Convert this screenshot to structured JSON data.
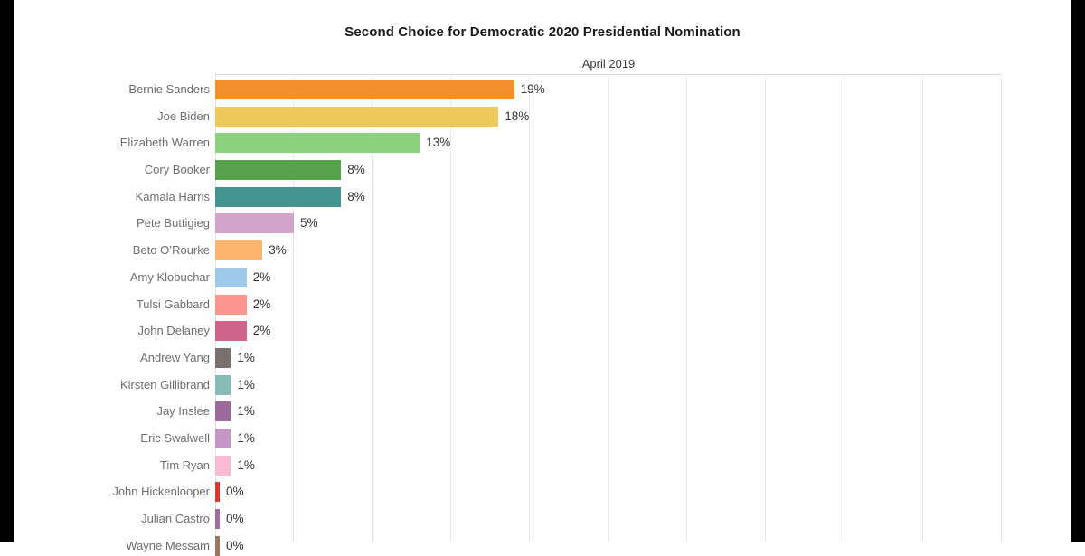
{
  "page": {
    "background": "#ffffff",
    "letterbox_color": "#000000"
  },
  "chart_data": {
    "type": "bar",
    "orientation": "horizontal",
    "title": "Second Choice for Democratic 2020 Presidential Nomination",
    "subtitle": "April 2019",
    "xlabel": "",
    "ylabel": "",
    "xlim": [
      0,
      50
    ],
    "gridline_interval": 5,
    "grid": true,
    "value_suffix": "%",
    "rows": [
      {
        "label": "Bernie Sanders",
        "value": 19,
        "value_label": "19%",
        "color": "#F28E2B"
      },
      {
        "label": "Joe Biden",
        "value": 18,
        "value_label": "18%",
        "color": "#EFC95C"
      },
      {
        "label": "Elizabeth Warren",
        "value": 13,
        "value_label": "13%",
        "color": "#8CD17D"
      },
      {
        "label": "Cory Booker",
        "value": 8,
        "value_label": "8%",
        "color": "#59A14F"
      },
      {
        "label": "Kamala Harris",
        "value": 8,
        "value_label": "8%",
        "color": "#45948F"
      },
      {
        "label": "Pete Buttigieg",
        "value": 5,
        "value_label": "5%",
        "color": "#D2A4CA"
      },
      {
        "label": "Beto O’Rourke",
        "value": 3,
        "value_label": "3%",
        "color": "#FCB56F"
      },
      {
        "label": "Amy Klobuchar",
        "value": 2,
        "value_label": "2%",
        "color": "#9FC9E8"
      },
      {
        "label": "Tulsi Gabbard",
        "value": 2,
        "value_label": "2%",
        "color": "#FC948F"
      },
      {
        "label": "John Delaney",
        "value": 2,
        "value_label": "2%",
        "color": "#CE6389"
      },
      {
        "label": "Andrew Yang",
        "value": 1,
        "value_label": "1%",
        "color": "#79706E"
      },
      {
        "label": "Kirsten Gillibrand",
        "value": 1,
        "value_label": "1%",
        "color": "#86BCB6"
      },
      {
        "label": "Jay Inslee",
        "value": 1,
        "value_label": "1%",
        "color": "#9C6A9B"
      },
      {
        "label": "Eric Swalwell",
        "value": 1,
        "value_label": "1%",
        "color": "#C597C7"
      },
      {
        "label": "Tim Ryan",
        "value": 1,
        "value_label": "1%",
        "color": "#F9BBD3"
      },
      {
        "label": "John Hickenlooper",
        "value": 0,
        "value_label": "0%",
        "color": "#D93830"
      },
      {
        "label": "Julian Castro",
        "value": 0,
        "value_label": "0%",
        "color": "#A06B9E"
      },
      {
        "label": "Wayne Messam",
        "value": 0,
        "value_label": "0%",
        "color": "#9D7660"
      }
    ]
  }
}
